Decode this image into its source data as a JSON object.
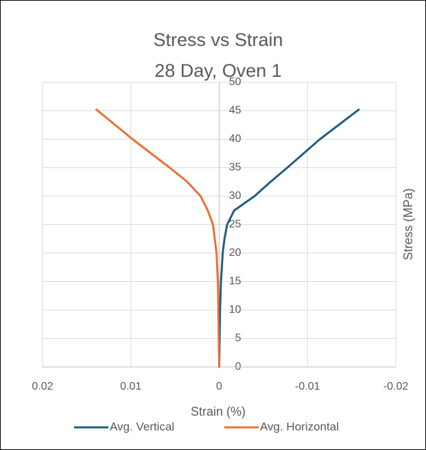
{
  "chart_data": {
    "type": "line",
    "title": "Stress vs Strain",
    "subtitle": "28 Day, Oven 1",
    "x_label": "Strain (%)",
    "y_label": "Stress (MPa)",
    "xlim": [
      0.02,
      -0.02
    ],
    "xticks": [
      0.02,
      0.01,
      0,
      -0.01,
      -0.02
    ],
    "ylim": [
      0,
      50
    ],
    "yticks": [
      0,
      5,
      10,
      15,
      20,
      25,
      30,
      35,
      40,
      45,
      50
    ],
    "grid": true,
    "legend": "bottom",
    "series": [
      {
        "name": "Avg. Vertical",
        "color": "#1f5f7d",
        "x": [
          0,
          -5e-05,
          -0.0001,
          -0.0002,
          -0.0004,
          -0.0006,
          -0.0009,
          -0.0017,
          -0.004,
          -0.0058,
          -0.0077,
          -0.0114,
          -0.0158
        ],
        "values": [
          0,
          5,
          10,
          15,
          20,
          22.5,
          25,
          27.5,
          30,
          32.5,
          35,
          40,
          45.2
        ]
      },
      {
        "name": "Avg. Horizontal",
        "color": "#e97132",
        "x": [
          0,
          5e-05,
          0.0001,
          0.00015,
          0.0003,
          0.0005,
          0.0007,
          0.0013,
          0.0021,
          0.0036,
          0.0056,
          0.0098,
          0.0139
        ],
        "values": [
          0,
          5,
          10,
          15,
          20,
          22.5,
          25,
          27.5,
          30,
          32.5,
          35,
          40,
          45.2
        ]
      }
    ]
  }
}
